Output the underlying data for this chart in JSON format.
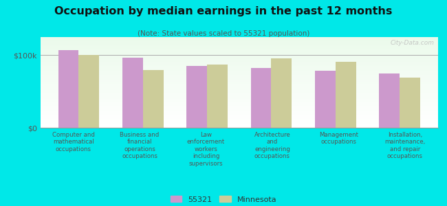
{
  "title": "Occupation by median earnings in the past 12 months",
  "subtitle": "(Note: State values scaled to 55321 population)",
  "background_color": "#00e8e8",
  "bar_color_55321": "#cc99cc",
  "bar_color_mn": "#cccc99",
  "categories": [
    "Computer and\nmathematical\noccupations",
    "Business and\nfinancial\noperations\noccupations",
    "Law\nenforcement\nworkers\nincluding\nsupervisors",
    "Architecture\nand\nengineering\noccupations",
    "Management\noccupations",
    "Installation,\nmaintenance,\nand repair\noccupations"
  ],
  "values_55321": [
    107000,
    97000,
    85000,
    82000,
    79000,
    75000
  ],
  "values_mn": [
    100000,
    80000,
    87000,
    96000,
    91000,
    69000
  ],
  "ylim": [
    0,
    125000
  ],
  "yticks": [
    0,
    100000
  ],
  "ytick_labels": [
    "$0",
    "$100k"
  ],
  "legend_labels": [
    "55321",
    "Minnesota"
  ],
  "watermark": "City-Data.com"
}
